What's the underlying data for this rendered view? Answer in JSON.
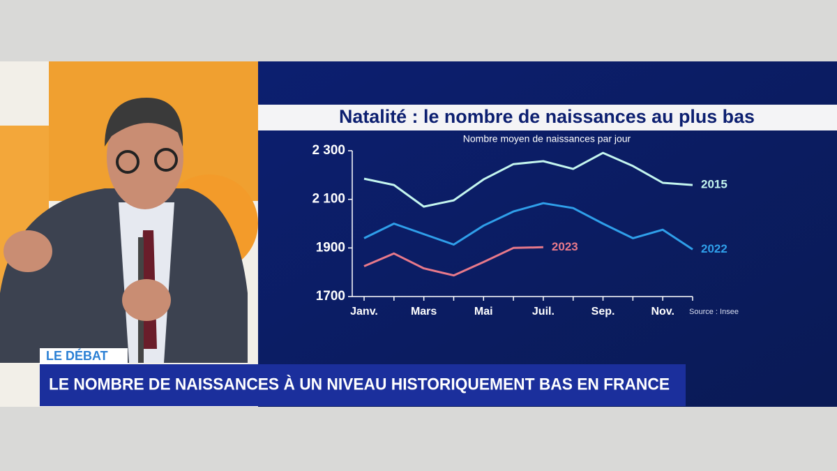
{
  "banner": {
    "tag": "LE DÉBAT",
    "headline": "LE NOMBRE DE NAISSANCES À UN NIVEAU HISTORIQUEMENT BAS EN FRANCE"
  },
  "chart_data": {
    "type": "line",
    "title": "Natalité : le nombre de naissances au plus bas",
    "subtitle": "Nombre moyen de naissances par jour",
    "source": "Source : Insee",
    "categories": [
      "Janv.",
      null,
      "Mars",
      null,
      "Mai",
      null,
      "Juil.",
      null,
      "Sep.",
      null,
      "Nov.",
      null
    ],
    "ylim": [
      1700,
      2300
    ],
    "yticks": [
      {
        "value": 1700,
        "label": "1700"
      },
      {
        "value": 1900,
        "label": "1900"
      },
      {
        "value": 2100,
        "label": "2 100"
      },
      {
        "value": 2300,
        "label": "2 300"
      }
    ],
    "series": [
      {
        "name": "2015",
        "color": "#c4f6ef",
        "values": [
          2185,
          2159,
          2070,
          2096,
          2182,
          2245,
          2257,
          2225,
          2291,
          2237,
          2168,
          2159
        ]
      },
      {
        "name": "2022",
        "color": "#2f9fea",
        "values": [
          1940,
          2000,
          1957,
          1914,
          1992,
          2050,
          2084,
          2064,
          2000,
          1940,
          1975,
          1894
        ]
      },
      {
        "name": "2023",
        "color": "#e8798a",
        "values": [
          1825,
          1877,
          1816,
          1787,
          1842,
          1900,
          1903,
          null,
          null,
          null,
          null,
          null
        ]
      }
    ]
  }
}
